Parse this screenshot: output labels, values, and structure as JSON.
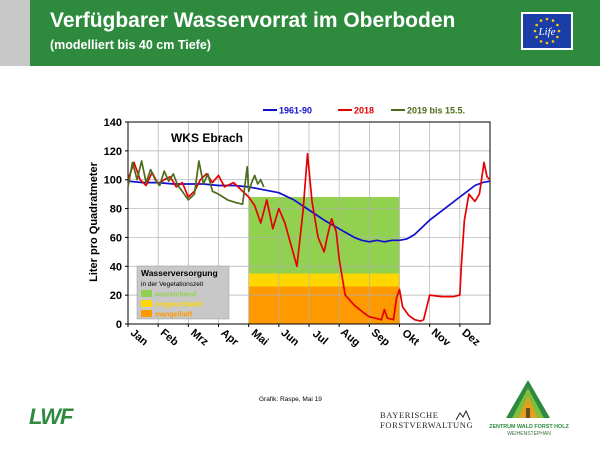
{
  "header": {
    "title": "Verfügbarer Wasservorrat im Oberboden",
    "subtitle": "(modelliert bis 40 cm Tiefe)",
    "color": "#2e8b3e"
  },
  "eu_logo": {
    "text": "Life",
    "icon": "eu-life-flag-icon"
  },
  "chart_data": {
    "type": "line",
    "title": "WKS Ebrach",
    "ylabel": "Liter pro Quadratmeter",
    "ylim": [
      0,
      140
    ],
    "yticks": [
      "0",
      "20",
      "40",
      "60",
      "80",
      "100",
      "120",
      "140"
    ],
    "xlim": [
      0,
      12
    ],
    "months": [
      "Jan",
      "Feb",
      "Mrz",
      "Apr",
      "Mai",
      "Jun",
      "Jul",
      "Aug",
      "Sep",
      "Okt",
      "Nov",
      "Dez"
    ],
    "grid": true,
    "legend_position": "top",
    "bands": {
      "x_range": [
        4,
        9
      ],
      "levels": [
        {
          "name": "ausreichend",
          "from": 35,
          "to": 88,
          "color": "#92d050"
        },
        {
          "name": "eingeschränkt",
          "from": 26,
          "to": 35,
          "color": "#ffd700"
        },
        {
          "name": "mangelhaft",
          "from": 0,
          "to": 26,
          "color": "#ff9900"
        }
      ]
    },
    "legend_box": {
      "title": "Wasserversorgung",
      "subtitle": "in der Vegetationszeit",
      "items": [
        {
          "label": "ausreichend",
          "color": "#92d050"
        },
        {
          "label": "eingeschränkt",
          "color": "#ffd700"
        },
        {
          "label": "mangelhaft",
          "color": "#ff9900"
        }
      ]
    },
    "series": [
      {
        "name": "1961-90",
        "color": "#1010cc",
        "x": [
          0,
          0.5,
          1,
          1.5,
          2,
          2.5,
          3,
          3.5,
          4,
          4.5,
          5,
          5.5,
          6,
          6.5,
          7,
          7.25,
          7.5,
          7.75,
          8,
          8.25,
          8.5,
          8.75,
          9,
          9.25,
          9.5,
          10,
          10.5,
          11,
          11.25,
          11.5,
          11.75,
          12
        ],
        "y": [
          99,
          98,
          98,
          97,
          97,
          97,
          96,
          96,
          95,
          93,
          91,
          86,
          79,
          72,
          66,
          63,
          60,
          58,
          57,
          58,
          57,
          58,
          58,
          59,
          62,
          72,
          80,
          88,
          92,
          96,
          98,
          99
        ]
      },
      {
        "name": "2018",
        "color": "#e60000",
        "x": [
          0,
          0.2,
          0.4,
          0.6,
          0.8,
          1,
          1.2,
          1.4,
          1.6,
          1.8,
          2,
          2.2,
          2.4,
          2.6,
          2.8,
          3,
          3.2,
          3.5,
          3.8,
          4,
          4.2,
          4.4,
          4.6,
          4.8,
          5,
          5.2,
          5.4,
          5.6,
          5.8,
          5.95,
          6.1,
          6.3,
          6.5,
          6.6,
          6.75,
          6.9,
          7,
          7.2,
          7.5,
          7.8,
          8,
          8.2,
          8.4,
          8.5,
          8.6,
          8.8,
          8.9,
          9,
          9.1,
          9.3,
          9.5,
          9.7,
          9.8,
          10,
          10.4,
          10.8,
          11,
          11.05,
          11.15,
          11.3,
          11.5,
          11.65,
          11.8,
          11.9,
          12
        ],
        "y": [
          100,
          112,
          100,
          96,
          105,
          97,
          100,
          102,
          95,
          98,
          88,
          92,
          100,
          104,
          98,
          103,
          95,
          98,
          92,
          88,
          82,
          70,
          86,
          66,
          80,
          70,
          55,
          40,
          78,
          118,
          85,
          60,
          50,
          60,
          73,
          64,
          45,
          20,
          13,
          8,
          5,
          4,
          3,
          10,
          4,
          3,
          18,
          24,
          12,
          6,
          3,
          2,
          3,
          20,
          19,
          19,
          20,
          40,
          72,
          90,
          85,
          90,
          112,
          102,
          100
        ]
      },
      {
        "name": "2019 bis 15.5.",
        "color": "#4d6b1a",
        "x": [
          0,
          0.15,
          0.3,
          0.45,
          0.6,
          0.75,
          0.9,
          1.05,
          1.2,
          1.35,
          1.5,
          1.65,
          1.8,
          2,
          2.2,
          2.35,
          2.5,
          2.65,
          2.8,
          3,
          3.3,
          3.6,
          3.8,
          3.95,
          4,
          4.1,
          4.2,
          4.3,
          4.4,
          4.5
        ],
        "y": [
          95,
          112,
          100,
          113,
          98,
          107,
          100,
          96,
          106,
          99,
          104,
          96,
          92,
          86,
          90,
          113,
          97,
          104,
          92,
          90,
          86,
          84,
          83,
          109,
          92,
          98,
          103,
          97,
          100,
          95
        ]
      }
    ]
  },
  "footer": {
    "credit": "Grafik: Raspe, Mai 19",
    "lwf_logo": "LWF",
    "bayern_line1": "BAYERISCHE",
    "bayern_line2": "FORSTVERWALTUNG",
    "zwfh_line1": "ZENTRUM WALD FORST HOLZ",
    "zwfh_line2": "WEIHENSTEPHAN"
  }
}
